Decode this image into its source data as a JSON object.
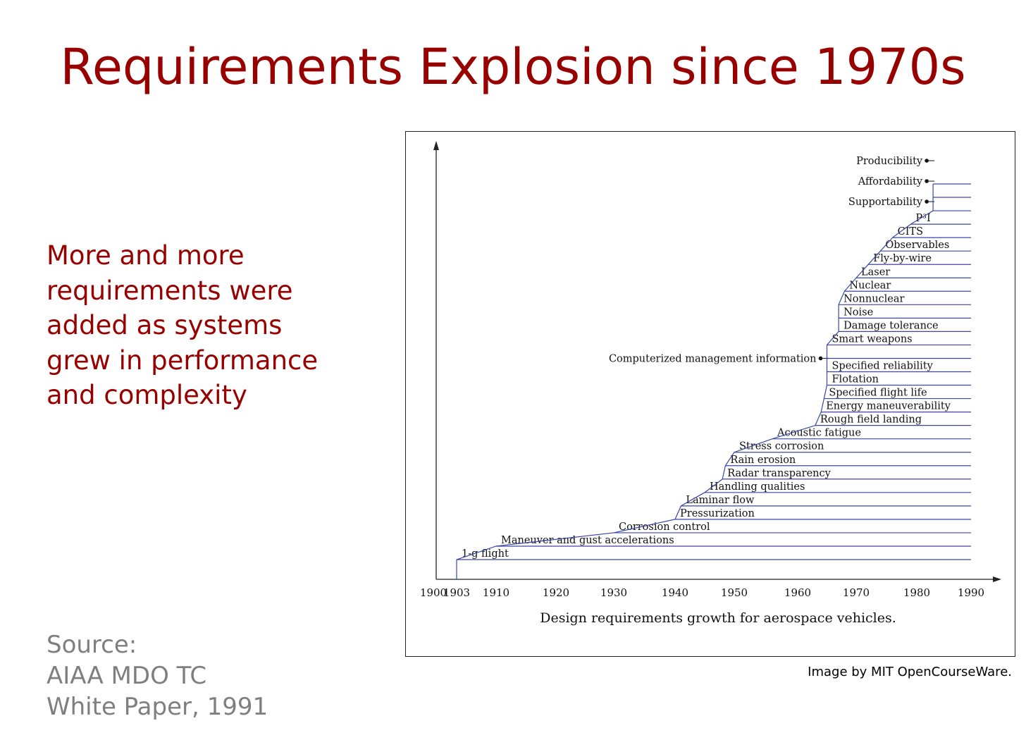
{
  "slide": {
    "title": "Requirements Explosion since 1970s",
    "bullet": "More and more requirements were added as systems grew in performance and complexity",
    "source_lines": [
      "Source:",
      "AIAA MDO TC",
      "White Paper, 1991"
    ],
    "credit": "Image by MIT OpenCourseWare."
  },
  "colors": {
    "title": "#980000",
    "source": "#7f7f7f",
    "step_line": "#3a46a8"
  },
  "chart_data": {
    "type": "step-line",
    "title": "",
    "caption": "Design requirements growth for aerospace vehicles.",
    "xlabel": "",
    "ylabel": "",
    "xlim": [
      1900,
      1990
    ],
    "x_ticks": [
      "1900",
      "1903",
      "1910",
      "1920",
      "1930",
      "1940",
      "1950",
      "1960",
      "1970",
      "1980",
      "1990"
    ],
    "x_tick_values": [
      1900,
      1903,
      1910,
      1920,
      1930,
      1940,
      1950,
      1960,
      1970,
      1980,
      1990
    ],
    "requirements": [
      {
        "label": "1-g flight",
        "year": 1903
      },
      {
        "label": "Maneuver and gust accelerations",
        "year": 1910
      },
      {
        "label": "Corrosion control",
        "year": 1930
      },
      {
        "label": "Pressurization",
        "year": 1940
      },
      {
        "label": "Laminar flow",
        "year": 1941
      },
      {
        "label": "Handling qualities",
        "year": 1945
      },
      {
        "label": "Radar transparency",
        "year": 1948
      },
      {
        "label": "Rain erosion",
        "year": 1948.5
      },
      {
        "label": "Stress corrosion",
        "year": 1950
      },
      {
        "label": "Acoustic fatigue",
        "year": 1956
      },
      {
        "label": "Rough field landing",
        "year": 1963
      },
      {
        "label": "Energy maneuverability",
        "year": 1964
      },
      {
        "label": "Specified flight life",
        "year": 1964.5
      },
      {
        "label": "Flotation",
        "year": 1965
      },
      {
        "label": "Specified reliability",
        "year": 1965
      },
      {
        "label": "Computerized management information",
        "year": 1965,
        "external": true
      },
      {
        "label": "Smart weapons",
        "year": 1965
      },
      {
        "label": "Damage tolerance",
        "year": 1967
      },
      {
        "label": "Noise",
        "year": 1967
      },
      {
        "label": "Nonnuclear",
        "year": 1967
      },
      {
        "label": "Nuclear",
        "year": 1968
      },
      {
        "label": "Laser",
        "year": 1970
      },
      {
        "label": "Fly-by-wire",
        "year": 1972
      },
      {
        "label": "Observables",
        "year": 1974
      },
      {
        "label": "CITS",
        "year": 1976
      },
      {
        "label": "P³I",
        "year": 1979
      },
      {
        "label": "Supportability",
        "year": 1983,
        "external": true
      },
      {
        "label": "Affordability",
        "year": 1983,
        "external": true
      },
      {
        "label": "Producibility",
        "year": 1983,
        "external": true
      }
    ]
  }
}
